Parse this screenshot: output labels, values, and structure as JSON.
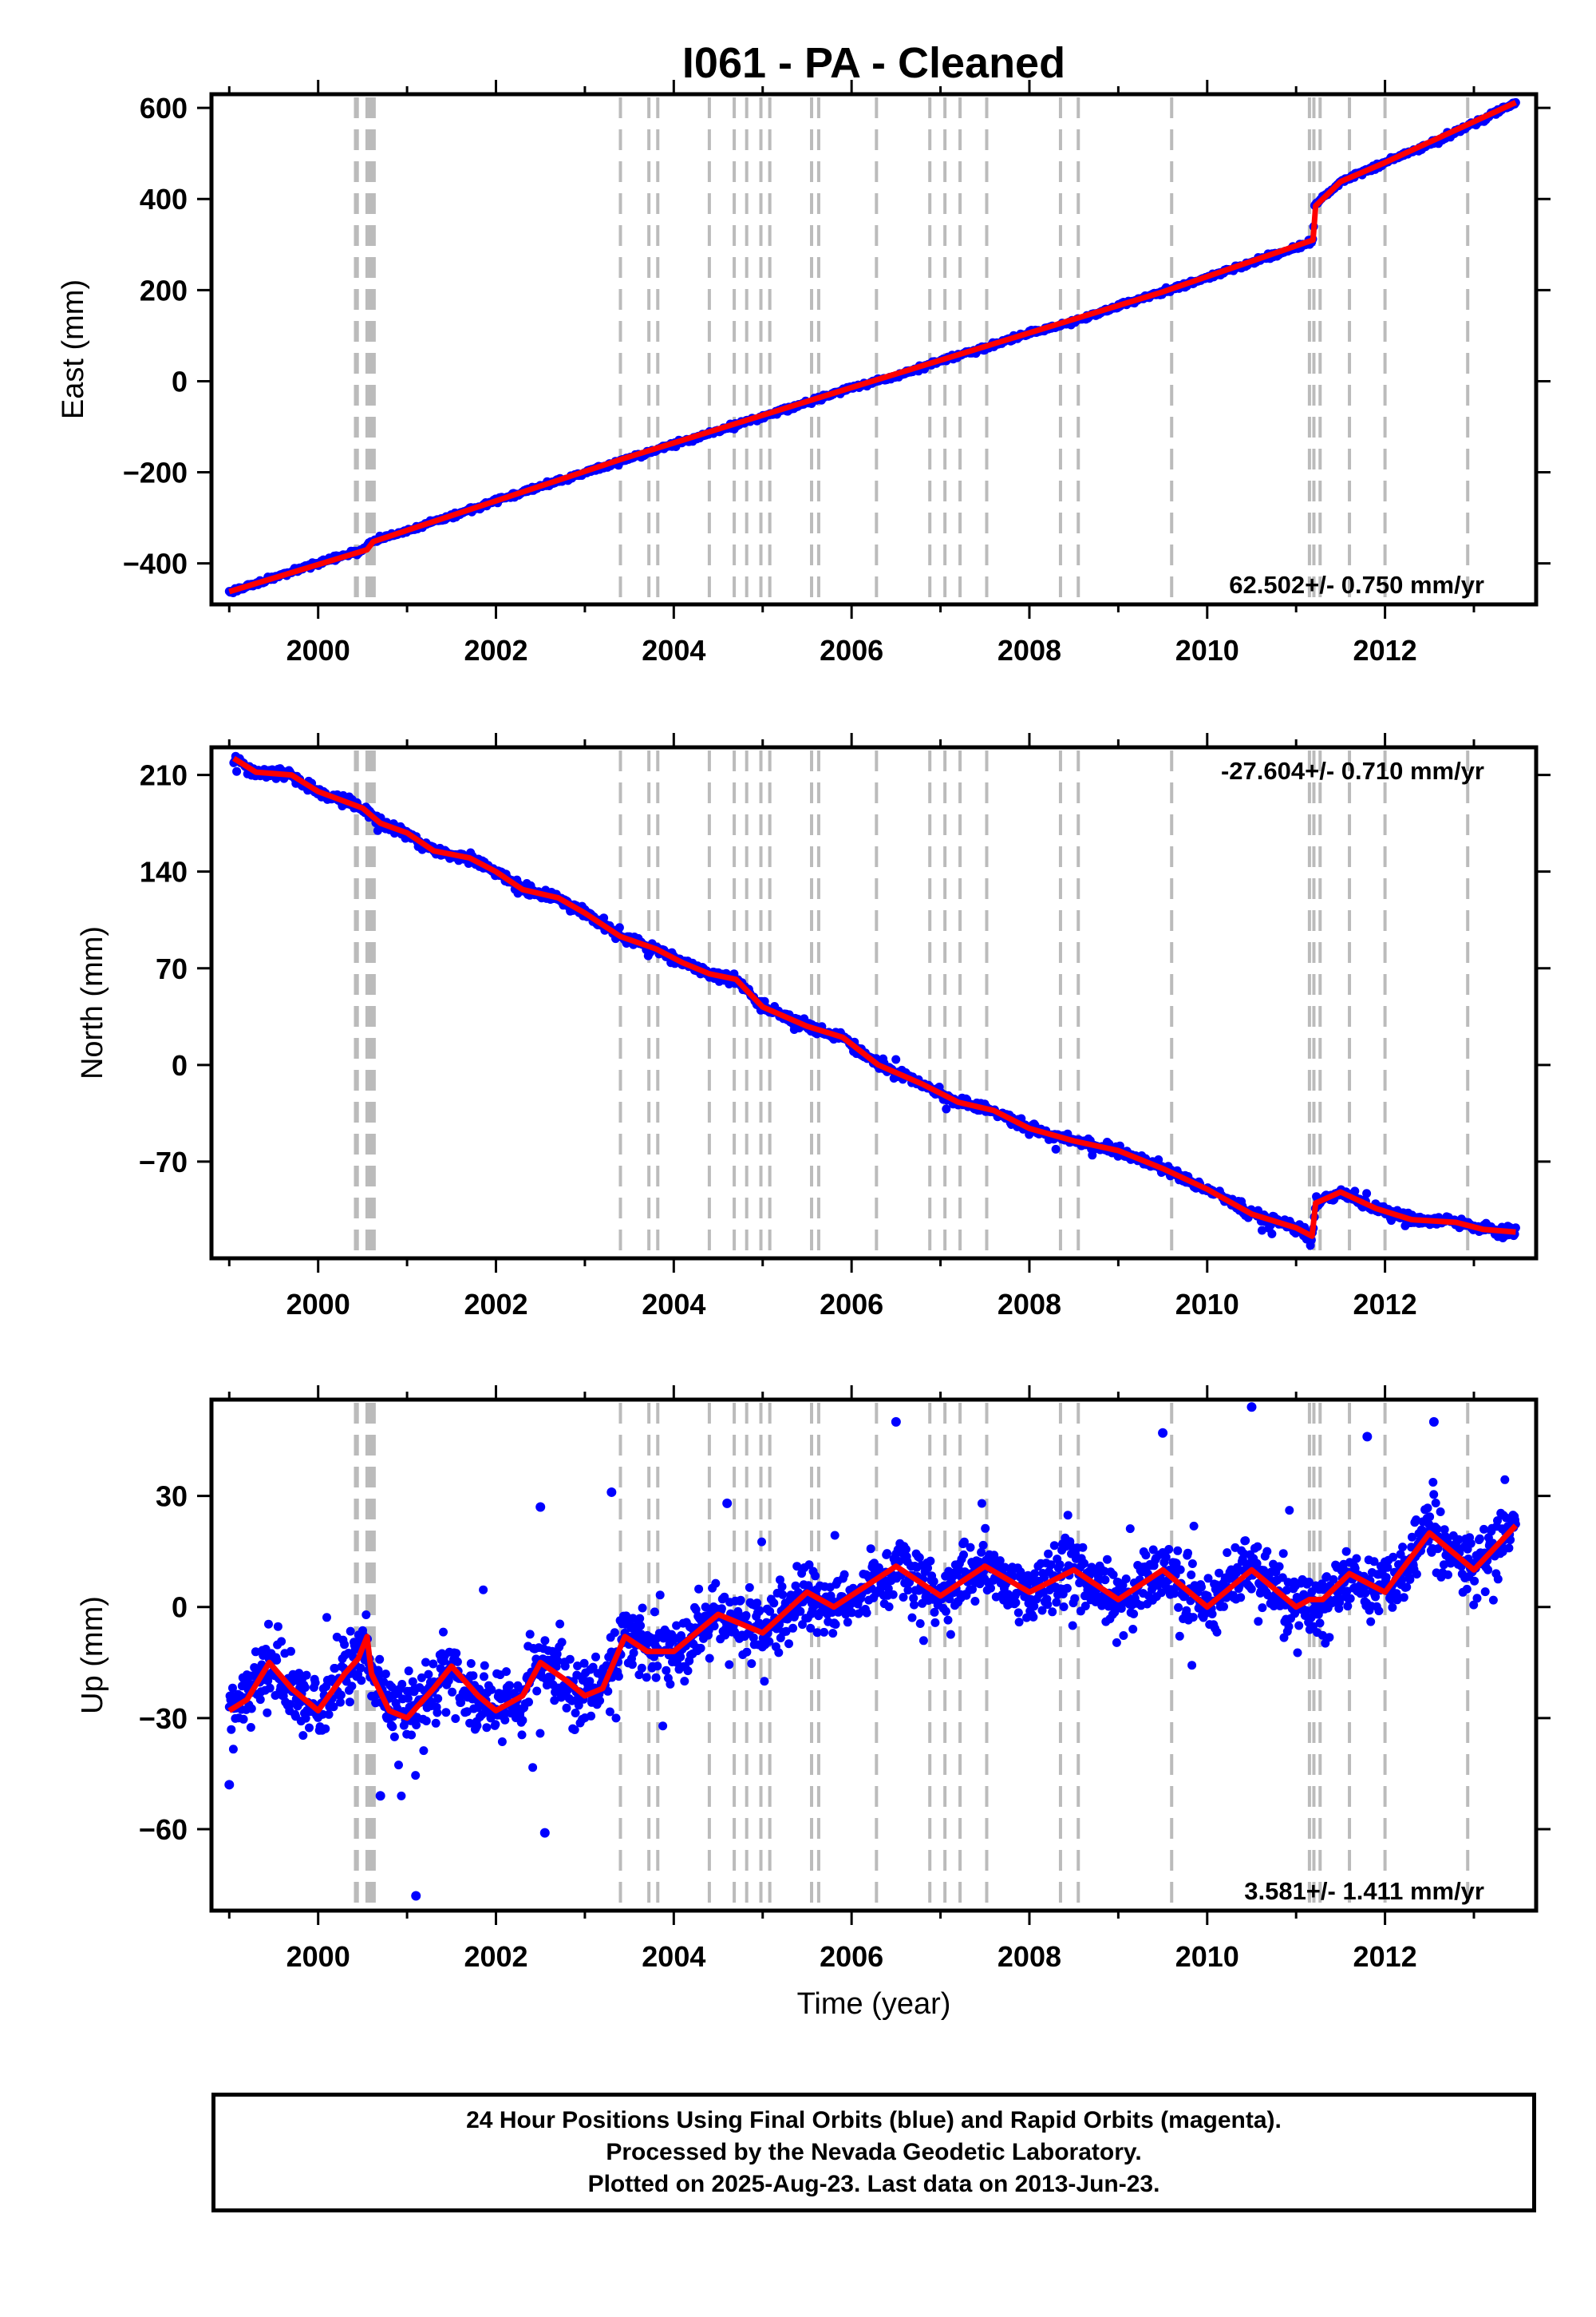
{
  "title": "I061  - PA - Cleaned",
  "xlabel": "Time (year)",
  "x_tick_labels": [
    "2000",
    "2002",
    "2004",
    "2006",
    "2008",
    "2010",
    "2012"
  ],
  "colors": {
    "final_orbits": "#0000ff",
    "model": "#ff0000",
    "event_lines": "#bbbbbb",
    "frame": "#000000"
  },
  "footer": {
    "line1": "24 Hour Positions Using Final Orbits (blue) and Rapid Orbits (magenta).",
    "line2": "Processed by the Nevada Geodetic Laboratory.",
    "line3": "Plotted on 2025-Aug-23. Last data on 2013-Jun-23."
  },
  "chart_data": [
    {
      "type": "scatter",
      "name": "east",
      "ylabel": "East (mm)",
      "rate_label": "62.502+/- 0.750 mm/yr",
      "rate_position": "bottom-right",
      "xlim": [
        1998.8,
        2013.7
      ],
      "ylim": [
        -490,
        630
      ],
      "y_ticks": [
        -400,
        -200,
        0,
        200,
        400,
        600
      ],
      "y_tick_labels": [
        "−400",
        "−200",
        "0",
        "200",
        "400",
        "600"
      ],
      "event_lines": [
        2000.42,
        2000.44,
        2000.55,
        2000.57,
        2000.59,
        2000.61,
        2000.63,
        2003.4,
        2003.72,
        2003.82,
        2004.4,
        2004.68,
        2004.82,
        2004.98,
        2005.08,
        2005.55,
        2005.63,
        2006.28,
        2006.88,
        2007.05,
        2007.22,
        2007.52,
        2008.35,
        2008.55,
        2009.6,
        2011.15,
        2011.2,
        2011.27,
        2011.6,
        2012.0,
        2012.93
      ],
      "points": [
        [
          1999.0,
          -463
        ],
        [
          1999.5,
          -432
        ],
        [
          2000.0,
          -400
        ],
        [
          2000.5,
          -371
        ],
        [
          2000.6,
          -352
        ],
        [
          2001.0,
          -328
        ],
        [
          2001.5,
          -297
        ],
        [
          2002.0,
          -262
        ],
        [
          2002.5,
          -232
        ],
        [
          2003.0,
          -201
        ],
        [
          2003.5,
          -170
        ],
        [
          2004.0,
          -138
        ],
        [
          2004.5,
          -109
        ],
        [
          2005.0,
          -78
        ],
        [
          2005.5,
          -47
        ],
        [
          2006.0,
          -14
        ],
        [
          2006.5,
          11
        ],
        [
          2007.0,
          45
        ],
        [
          2007.5,
          73
        ],
        [
          2008.0,
          106
        ],
        [
          2008.5,
          131
        ],
        [
          2009.0,
          165
        ],
        [
          2009.5,
          196
        ],
        [
          2010.0,
          228
        ],
        [
          2010.5,
          261
        ],
        [
          2011.0,
          292
        ],
        [
          2011.19,
          310
        ],
        [
          2011.21,
          385
        ],
        [
          2011.5,
          438
        ],
        [
          2012.0,
          480
        ],
        [
          2012.5,
          520
        ],
        [
          2013.0,
          566
        ],
        [
          2013.47,
          612
        ]
      ],
      "model": [
        [
          1999.0,
          -462
        ],
        [
          2000.55,
          -370
        ],
        [
          2000.62,
          -352
        ],
        [
          2003.4,
          -172
        ],
        [
          2006.0,
          -14
        ],
        [
          2009.5,
          196
        ],
        [
          2011.19,
          310
        ],
        [
          2011.22,
          385
        ],
        [
          2011.5,
          438
        ],
        [
          2012.0,
          480
        ],
        [
          2013.47,
          612
        ]
      ]
    },
    {
      "type": "scatter",
      "name": "north",
      "ylabel": "North (mm)",
      "rate_label": "-27.604+/- 0.710 mm/yr",
      "rate_position": "top-right",
      "xlim": [
        1998.8,
        2013.7
      ],
      "ylim": [
        -140,
        230
      ],
      "y_ticks": [
        -70,
        0,
        70,
        140,
        210
      ],
      "y_tick_labels": [
        "−70",
        "0",
        "70",
        "140",
        "210"
      ],
      "event_lines": [
        2000.42,
        2000.44,
        2000.55,
        2000.57,
        2000.59,
        2000.61,
        2000.63,
        2003.4,
        2003.72,
        2003.82,
        2004.4,
        2004.68,
        2004.82,
        2004.98,
        2005.08,
        2005.55,
        2005.63,
        2006.28,
        2006.88,
        2007.05,
        2007.22,
        2007.52,
        2008.35,
        2008.55,
        2009.6,
        2011.15,
        2011.2,
        2011.27,
        2011.6,
        2012.0,
        2012.93
      ],
      "points": [
        [
          1999.05,
          222
        ],
        [
          1999.3,
          212
        ],
        [
          1999.7,
          210
        ],
        [
          2000.0,
          198
        ],
        [
          2000.5,
          186
        ],
        [
          2000.7,
          175
        ],
        [
          2001.0,
          168
        ],
        [
          2001.3,
          155
        ],
        [
          2001.7,
          150
        ],
        [
          2002.0,
          140
        ],
        [
          2002.3,
          127
        ],
        [
          2002.7,
          121
        ],
        [
          2003.0,
          110
        ],
        [
          2003.4,
          93
        ],
        [
          2003.8,
          84
        ],
        [
          2004.1,
          74
        ],
        [
          2004.4,
          66
        ],
        [
          2004.7,
          62
        ],
        [
          2005.0,
          42
        ],
        [
          2005.5,
          28
        ],
        [
          2005.9,
          20
        ],
        [
          2006.3,
          0
        ],
        [
          2006.8,
          -14
        ],
        [
          2007.2,
          -27
        ],
        [
          2007.6,
          -33
        ],
        [
          2008.0,
          -46
        ],
        [
          2008.5,
          -55
        ],
        [
          2009.0,
          -62
        ],
        [
          2009.5,
          -75
        ],
        [
          2010.0,
          -90
        ],
        [
          2010.5,
          -108
        ],
        [
          2011.0,
          -118
        ],
        [
          2011.18,
          -124
        ],
        [
          2011.22,
          -100
        ],
        [
          2011.5,
          -92
        ],
        [
          2011.9,
          -104
        ],
        [
          2012.3,
          -112
        ],
        [
          2012.8,
          -114
        ],
        [
          2013.1,
          -119
        ],
        [
          2013.47,
          -121
        ]
      ],
      "model": [
        [
          1999.05,
          222
        ],
        [
          1999.3,
          212
        ],
        [
          1999.7,
          210
        ],
        [
          2000.0,
          198
        ],
        [
          2000.5,
          186
        ],
        [
          2000.7,
          175
        ],
        [
          2001.0,
          168
        ],
        [
          2001.3,
          155
        ],
        [
          2001.7,
          150
        ],
        [
          2002.0,
          140
        ],
        [
          2002.3,
          127
        ],
        [
          2002.7,
          121
        ],
        [
          2003.0,
          110
        ],
        [
          2003.4,
          93
        ],
        [
          2003.8,
          84
        ],
        [
          2004.1,
          74
        ],
        [
          2004.4,
          66
        ],
        [
          2004.7,
          62
        ],
        [
          2005.0,
          42
        ],
        [
          2005.5,
          28
        ],
        [
          2005.9,
          20
        ],
        [
          2006.3,
          0
        ],
        [
          2006.8,
          -14
        ],
        [
          2007.2,
          -27
        ],
        [
          2007.6,
          -33
        ],
        [
          2008.0,
          -46
        ],
        [
          2008.5,
          -55
        ],
        [
          2009.0,
          -62
        ],
        [
          2009.5,
          -75
        ],
        [
          2010.0,
          -90
        ],
        [
          2010.5,
          -108
        ],
        [
          2011.0,
          -118
        ],
        [
          2011.18,
          -124
        ],
        [
          2011.22,
          -100
        ],
        [
          2011.5,
          -92
        ],
        [
          2011.9,
          -104
        ],
        [
          2012.3,
          -112
        ],
        [
          2012.8,
          -114
        ],
        [
          2013.1,
          -119
        ],
        [
          2013.47,
          -121
        ]
      ]
    },
    {
      "type": "scatter",
      "name": "up",
      "ylabel": "Up (mm)",
      "rate_label": "3.581+/- 1.411 mm/yr",
      "rate_position": "bottom-right",
      "xlim": [
        1998.8,
        2013.7
      ],
      "ylim": [
        -82,
        56
      ],
      "y_ticks": [
        -60,
        -30,
        0,
        30
      ],
      "y_tick_labels": [
        "−60",
        "−30",
        "0",
        "30"
      ],
      "event_lines": [
        2000.42,
        2000.44,
        2000.55,
        2000.57,
        2000.59,
        2000.61,
        2000.63,
        2003.4,
        2003.72,
        2003.82,
        2004.4,
        2004.68,
        2004.82,
        2004.98,
        2005.08,
        2005.55,
        2005.63,
        2006.28,
        2006.88,
        2007.05,
        2007.22,
        2007.52,
        2008.35,
        2008.55,
        2009.6,
        2011.15,
        2011.2,
        2011.27,
        2011.6,
        2012.0,
        2012.93
      ],
      "points": [
        [
          1999.0,
          -28
        ],
        [
          1999.2,
          -25
        ],
        [
          1999.45,
          -15
        ],
        [
          1999.7,
          -22
        ],
        [
          2000.0,
          -28
        ],
        [
          2000.3,
          -18
        ],
        [
          2000.45,
          -14
        ],
        [
          2000.55,
          -8
        ],
        [
          2000.6,
          -18
        ],
        [
          2000.8,
          -28
        ],
        [
          2001.0,
          -30
        ],
        [
          2001.3,
          -22
        ],
        [
          2001.5,
          -16
        ],
        [
          2001.8,
          -24
        ],
        [
          2002.0,
          -28
        ],
        [
          2002.3,
          -24
        ],
        [
          2002.5,
          -15
        ],
        [
          2002.8,
          -20
        ],
        [
          2003.0,
          -24
        ],
        [
          2003.2,
          -22
        ],
        [
          2003.45,
          -8
        ],
        [
          2003.7,
          -12
        ],
        [
          2004.0,
          -12
        ],
        [
          2004.5,
          -2
        ],
        [
          2005.0,
          -7
        ],
        [
          2005.5,
          4
        ],
        [
          2005.8,
          0
        ],
        [
          2006.5,
          11
        ],
        [
          2007.0,
          3
        ],
        [
          2007.5,
          11
        ],
        [
          2008.0,
          4
        ],
        [
          2008.5,
          10
        ],
        [
          2009.0,
          2
        ],
        [
          2009.5,
          10
        ],
        [
          2010.0,
          0
        ],
        [
          2010.5,
          10
        ],
        [
          2011.0,
          0
        ],
        [
          2011.15,
          2
        ],
        [
          2011.3,
          2
        ],
        [
          2011.6,
          9
        ],
        [
          2012.0,
          4
        ],
        [
          2012.5,
          20
        ],
        [
          2013.0,
          10
        ],
        [
          2013.47,
          22
        ]
      ],
      "outliers": [
        [
          2001.1,
          -78
        ],
        [
          2002.55,
          -61
        ],
        [
          1999.0,
          -48
        ],
        [
          2000.7,
          -51
        ],
        [
          2012.55,
          50
        ],
        [
          2010.5,
          54
        ],
        [
          2006.5,
          50
        ],
        [
          2009.5,
          47
        ],
        [
          2011.8,
          46
        ],
        [
          2002.5,
          27
        ],
        [
          2004.6,
          28
        ],
        [
          2003.3,
          31
        ]
      ],
      "model": [
        [
          1999.0,
          -28
        ],
        [
          1999.2,
          -25
        ],
        [
          1999.45,
          -15
        ],
        [
          1999.7,
          -22
        ],
        [
          2000.0,
          -28
        ],
        [
          2000.3,
          -18
        ],
        [
          2000.45,
          -14
        ],
        [
          2000.55,
          -8
        ],
        [
          2000.6,
          -18
        ],
        [
          2000.8,
          -28
        ],
        [
          2001.0,
          -30
        ],
        [
          2001.3,
          -22
        ],
        [
          2001.5,
          -16
        ],
        [
          2001.8,
          -24
        ],
        [
          2002.0,
          -28
        ],
        [
          2002.3,
          -24
        ],
        [
          2002.5,
          -15
        ],
        [
          2002.8,
          -20
        ],
        [
          2003.0,
          -24
        ],
        [
          2003.2,
          -22
        ],
        [
          2003.45,
          -8
        ],
        [
          2003.7,
          -12
        ],
        [
          2004.0,
          -12
        ],
        [
          2004.5,
          -2
        ],
        [
          2005.0,
          -7
        ],
        [
          2005.5,
          4
        ],
        [
          2005.8,
          0
        ],
        [
          2006.5,
          11
        ],
        [
          2007.0,
          3
        ],
        [
          2007.5,
          11
        ],
        [
          2008.0,
          4
        ],
        [
          2008.5,
          10
        ],
        [
          2009.0,
          2
        ],
        [
          2009.5,
          10
        ],
        [
          2010.0,
          0
        ],
        [
          2010.5,
          10
        ],
        [
          2011.0,
          0
        ],
        [
          2011.15,
          2
        ],
        [
          2011.3,
          2
        ],
        [
          2011.6,
          9
        ],
        [
          2012.0,
          4
        ],
        [
          2012.5,
          20
        ],
        [
          2013.0,
          10
        ],
        [
          2013.47,
          22
        ]
      ]
    }
  ]
}
